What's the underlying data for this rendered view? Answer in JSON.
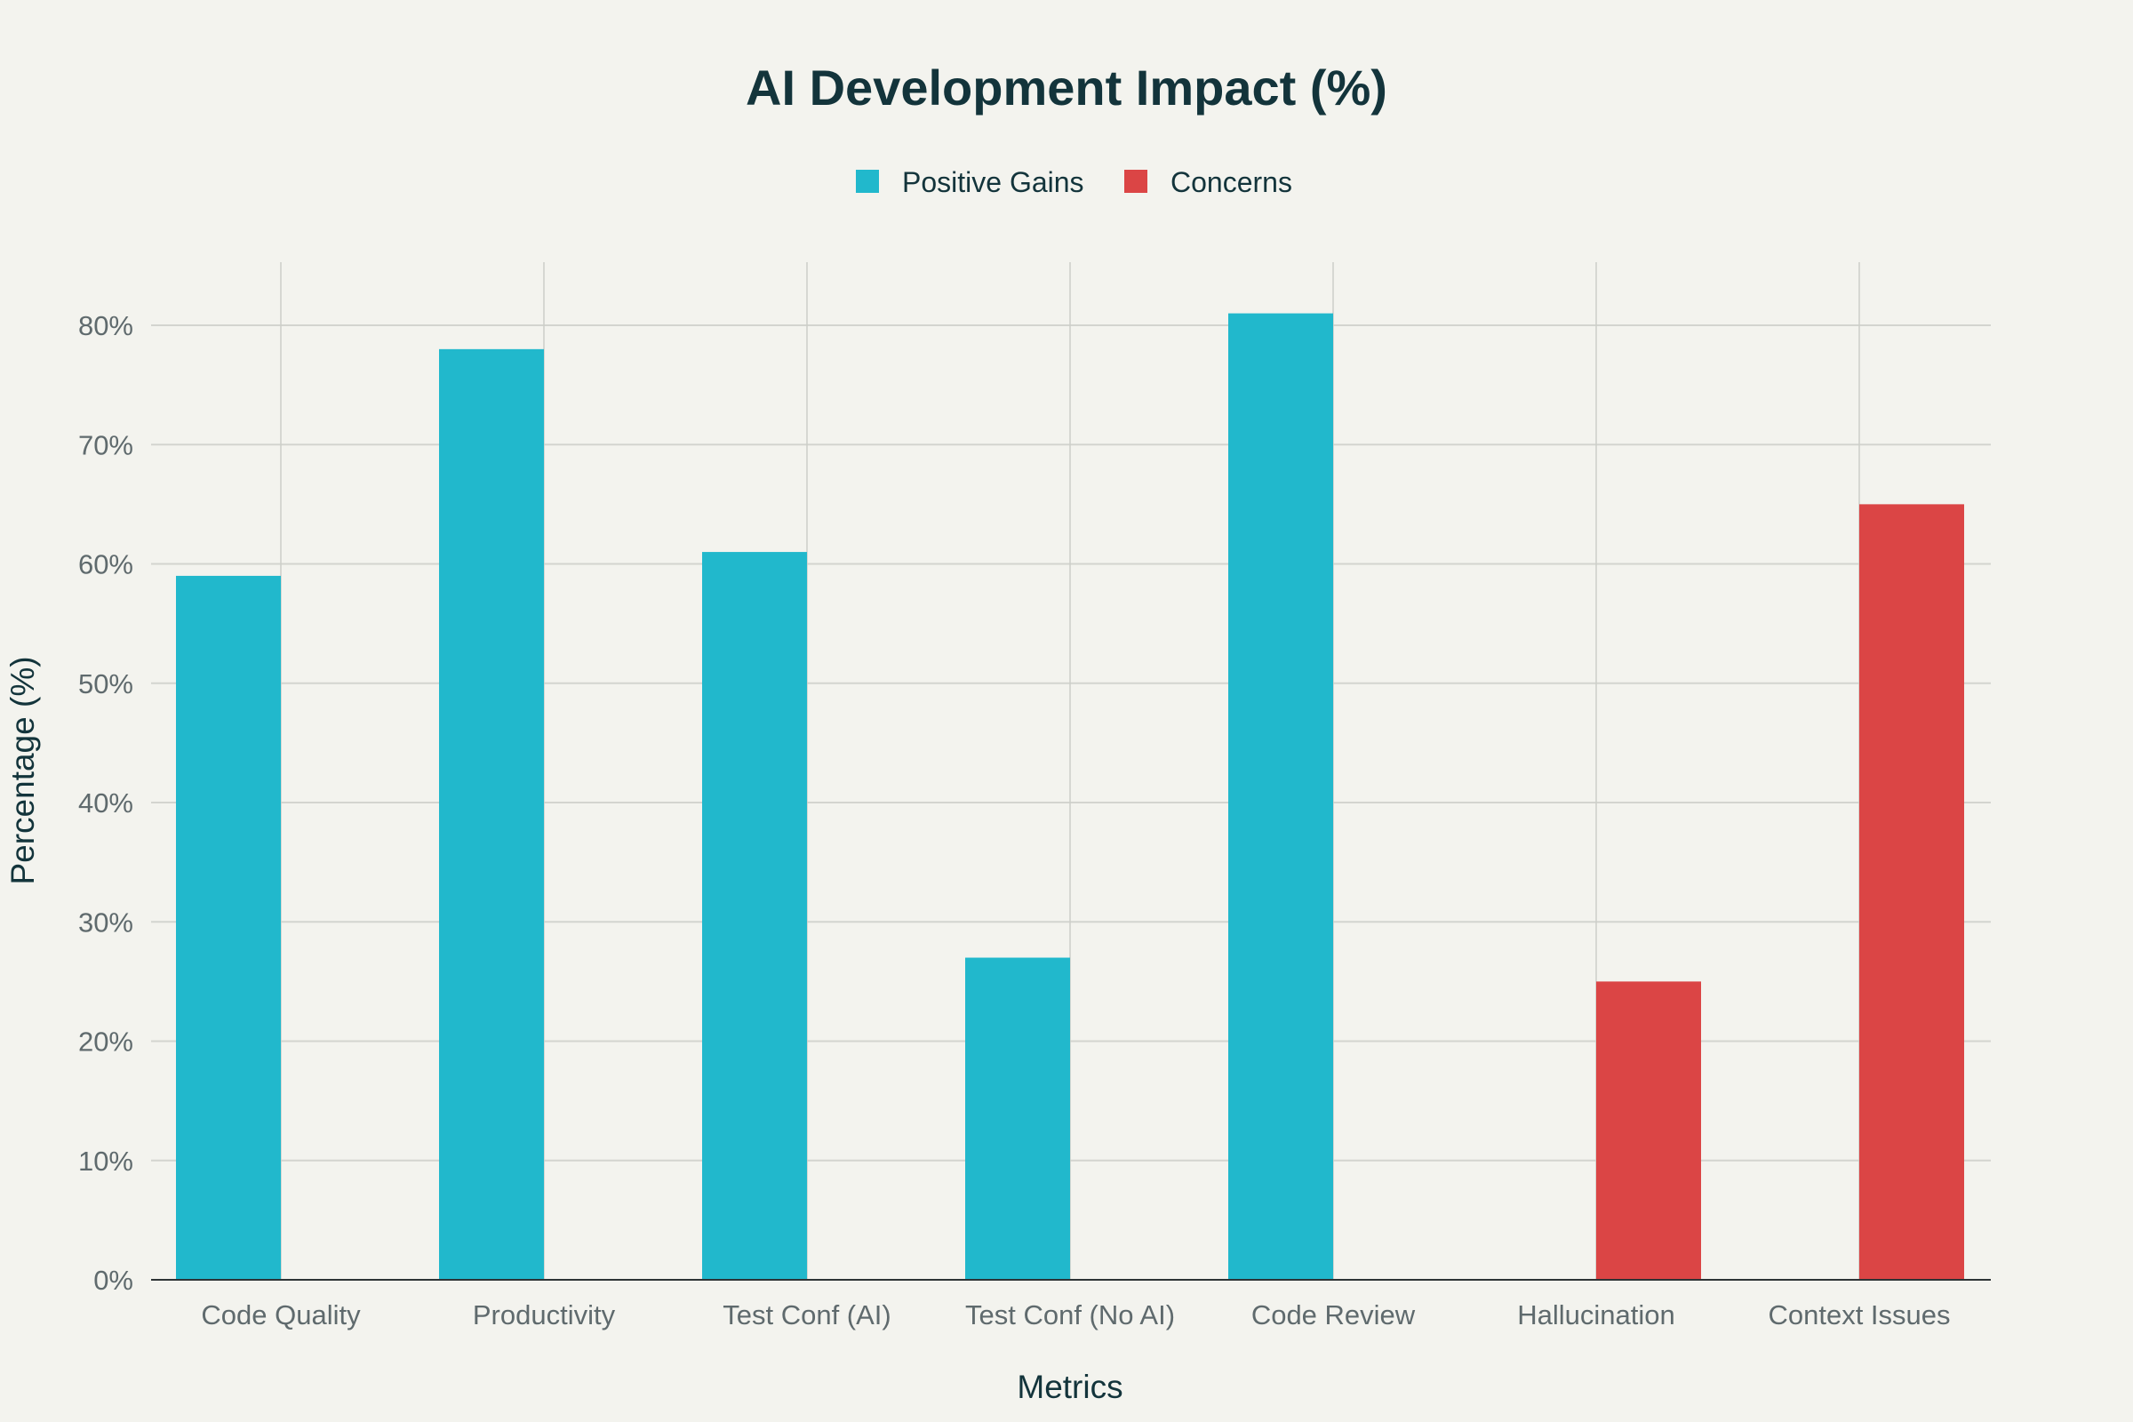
{
  "chart_data": {
    "type": "bar",
    "title": "AI Development Impact (%)",
    "xlabel": "Metrics",
    "ylabel": "Percentage (%)",
    "ylim": [
      0,
      85
    ],
    "yticks": [
      0,
      10,
      20,
      30,
      40,
      50,
      60,
      70,
      80
    ],
    "ytick_labels": [
      "0%",
      "10%",
      "20%",
      "30%",
      "40%",
      "50%",
      "60%",
      "70%",
      "80%"
    ],
    "categories": [
      "Code Quality",
      "Productivity",
      "Test Conf (AI)",
      "Test Conf (No AI)",
      "Code Review",
      "Hallucination",
      "Context Issues"
    ],
    "series": [
      {
        "name": "Positive Gains",
        "color": "#21b8cc",
        "values": [
          59,
          78,
          61,
          27,
          81,
          null,
          null
        ]
      },
      {
        "name": "Concerns",
        "color": "#db4545",
        "values": [
          null,
          null,
          null,
          null,
          null,
          25,
          65
        ]
      }
    ],
    "legend_position": "top-center",
    "grid": true
  }
}
